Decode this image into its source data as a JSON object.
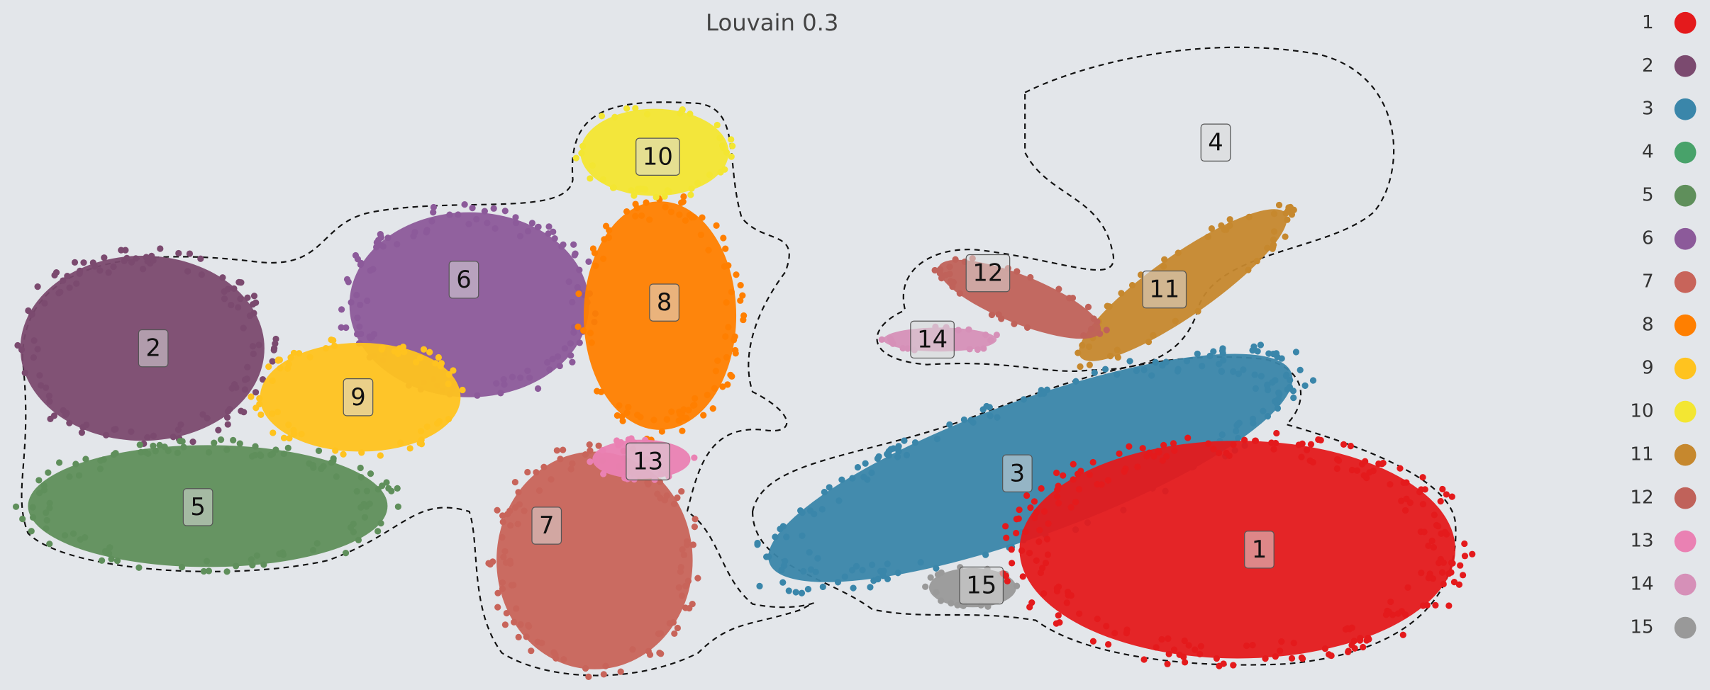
{
  "chart_data": {
    "type": "scatter",
    "title": "Louvain 0.3",
    "series": [
      {
        "name": "1",
        "color": "#e41a1c"
      },
      {
        "name": "2",
        "color": "#7b4a6f"
      },
      {
        "name": "3",
        "color": "#3a86aa"
      },
      {
        "name": "4",
        "color": "#48a26a"
      },
      {
        "name": "5",
        "color": "#5f8f5b"
      },
      {
        "name": "6",
        "color": "#8c5a9a"
      },
      {
        "name": "7",
        "color": "#c8645a"
      },
      {
        "name": "8",
        "color": "#ff7f00"
      },
      {
        "name": "9",
        "color": "#ffc31f"
      },
      {
        "name": "10",
        "color": "#f3e632"
      },
      {
        "name": "11",
        "color": "#c6882e"
      },
      {
        "name": "12",
        "color": "#c0625a"
      },
      {
        "name": "13",
        "color": "#ea81b3"
      },
      {
        "name": "14",
        "color": "#d690b8"
      },
      {
        "name": "15",
        "color": "#999999"
      }
    ]
  }
}
